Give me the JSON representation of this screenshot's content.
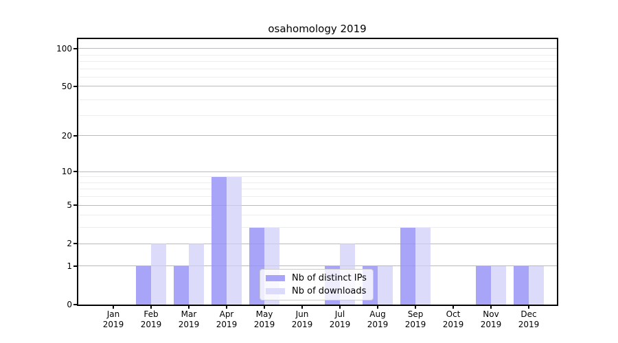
{
  "title": "osahomology 2019",
  "chart_data": {
    "type": "bar",
    "title": "osahomology 2019",
    "categories": [
      "Jan 2019",
      "Feb 2019",
      "Mar 2019",
      "Apr 2019",
      "May 2019",
      "Jun 2019",
      "Jul 2019",
      "Aug 2019",
      "Sep 2019",
      "Oct 2019",
      "Nov 2019",
      "Dec 2019"
    ],
    "x_tick_months": [
      "Jan",
      "Feb",
      "Mar",
      "Apr",
      "May",
      "Jun",
      "Jul",
      "Aug",
      "Sep",
      "Oct",
      "Nov",
      "Dec"
    ],
    "x_tick_year": "2019",
    "series": [
      {
        "name": "Nb of distinct IPs",
        "color": "#a8a5f8",
        "values": [
          0,
          1,
          1,
          9,
          3,
          0,
          1,
          1,
          3,
          0,
          1,
          1
        ]
      },
      {
        "name": "Nb of downloads",
        "color": "#dcdbfa",
        "values": [
          0,
          2,
          2,
          9,
          3,
          0,
          2,
          1,
          3,
          0,
          1,
          1
        ]
      }
    ],
    "yscale": "log1p",
    "xlabel": "",
    "ylabel": "",
    "yticks": [
      0,
      1,
      2,
      5,
      10,
      20,
      50,
      100
    ],
    "minor_gridlines": [
      3,
      4,
      6,
      7,
      8,
      9,
      29,
      39,
      59,
      69,
      79,
      89
    ],
    "ylim": [
      0,
      117
    ],
    "grid": true,
    "legend_position": "lower center inside"
  },
  "legend": {
    "items": [
      {
        "label": "Nb of distinct IPs",
        "color": "#a8a5f8"
      },
      {
        "label": "Nb of downloads",
        "color": "#dcdbfa"
      }
    ]
  },
  "colors": {
    "background": "#ffffff",
    "axis_frame": "#000000",
    "grid_major": "#c9c9c9",
    "grid_minor": "#ededed",
    "legend_border": "#cccccc",
    "bar_distinct_ips": "#a8a5f8",
    "bar_downloads": "#dcdbfa"
  }
}
